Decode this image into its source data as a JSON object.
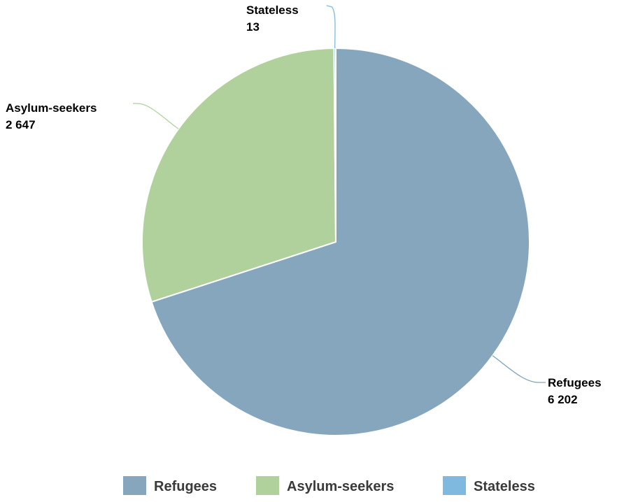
{
  "chart_data": {
    "type": "pie",
    "slices": [
      {
        "name": "Refugees",
        "value": 6202,
        "label": "6 202",
        "color": "#85a6bd"
      },
      {
        "name": "Asylum-seekers",
        "value": 2647,
        "label": "2 647",
        "color": "#b0d19c"
      },
      {
        "name": "Stateless",
        "value": 13,
        "label": "13",
        "color": "#7fb9e0"
      }
    ],
    "start_angle": "12 o'clock",
    "direction": "clockwise",
    "labels_outside": true,
    "legend": "bottom",
    "legend_items": [
      "Refugees",
      "Asylum-seekers",
      "Stateless"
    ]
  }
}
